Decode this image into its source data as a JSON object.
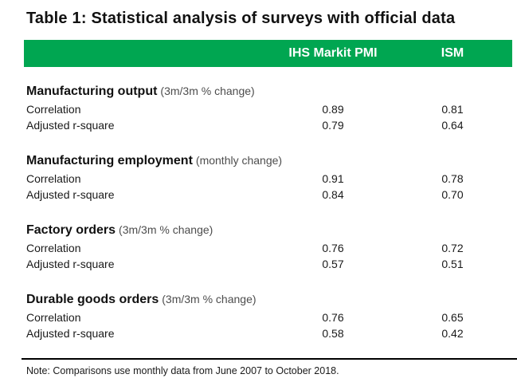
{
  "title": "Table 1: Statistical analysis of surveys with official data",
  "colors": {
    "header_bg": "#00a651",
    "header_text": "#ffffff",
    "qualifier_text": "#4d4d4d",
    "body_text": "#1a1a1a"
  },
  "table": {
    "columns": {
      "col1": "",
      "col2": "IHS Markit PMI",
      "col3": "ISM"
    },
    "sections": [
      {
        "name": "Manufacturing output",
        "qualifier": "(3m/3m % change)",
        "rows": [
          {
            "label": "Correlation",
            "values": [
              "0.89",
              "0.81"
            ]
          },
          {
            "label": "Adjusted r-square",
            "values": [
              "0.79",
              "0.64"
            ]
          }
        ]
      },
      {
        "name": "Manufacturing employment",
        "qualifier": "(monthly change)",
        "rows": [
          {
            "label": "Correlation",
            "values": [
              "0.91",
              "0.78"
            ]
          },
          {
            "label": "Adjusted r-square",
            "values": [
              "0.84",
              "0.70"
            ]
          }
        ]
      },
      {
        "name": "Factory orders",
        "qualifier": "(3m/3m % change)",
        "rows": [
          {
            "label": "Correlation",
            "values": [
              "0.76",
              "0.72"
            ]
          },
          {
            "label": "Adjusted r-square",
            "values": [
              "0.57",
              "0.51"
            ]
          }
        ]
      },
      {
        "name": "Durable goods orders",
        "qualifier": "(3m/3m % change)",
        "rows": [
          {
            "label": "Correlation",
            "values": [
              "0.76",
              "0.65"
            ]
          },
          {
            "label": "Adjusted r-square",
            "values": [
              "0.58",
              "0.42"
            ]
          }
        ]
      }
    ]
  },
  "note": "Note: Comparisons use monthly data from June 2007 to October 2018.",
  "chart_data": {
    "type": "table",
    "title": "Table 1: Statistical analysis of surveys with official data",
    "columns": [
      "",
      "IHS Markit PMI",
      "ISM"
    ],
    "rows": [
      [
        "Manufacturing output (3m/3m % change)",
        null,
        null
      ],
      [
        "Correlation",
        0.89,
        0.81
      ],
      [
        "Adjusted r-square",
        0.79,
        0.64
      ],
      [
        "Manufacturing employment (monthly change)",
        null,
        null
      ],
      [
        "Correlation",
        0.91,
        0.78
      ],
      [
        "Adjusted r-square",
        0.84,
        0.7
      ],
      [
        "Factory orders (3m/3m % change)",
        null,
        null
      ],
      [
        "Correlation",
        0.76,
        0.72
      ],
      [
        "Adjusted r-square",
        0.57,
        0.51
      ],
      [
        "Durable goods orders (3m/3m % change)",
        null,
        null
      ],
      [
        "Correlation",
        0.76,
        0.65
      ],
      [
        "Adjusted r-square",
        0.58,
        0.42
      ]
    ],
    "note": "Note: Comparisons use monthly data from June 2007 to October 2018.",
    "layout": {
      "header_bg": "#00a651",
      "header_text_color": "#ffffff",
      "grid": false
    }
  }
}
